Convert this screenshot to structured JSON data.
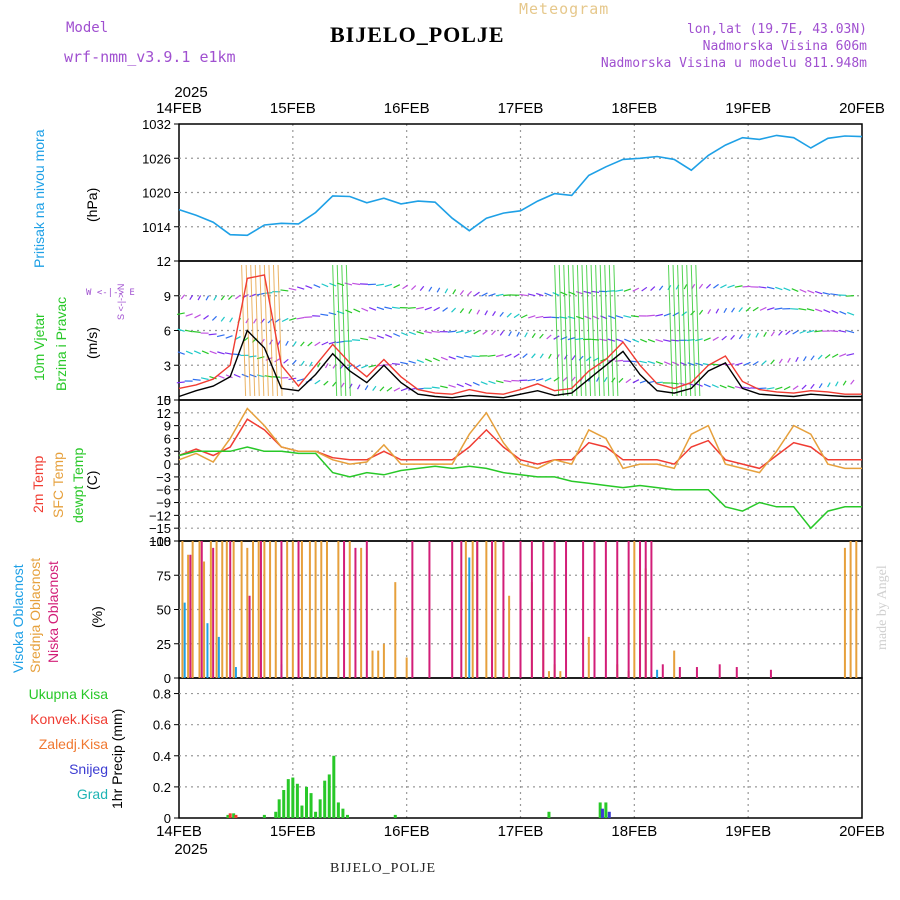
{
  "header": {
    "title": "BIJELO_POLJE",
    "meteogram": "Meteogram",
    "model_label": "Model",
    "model_name": "wrf-nmm_v3.9.1 e1km",
    "lonlat": "lon,lat (19.7E, 43.03N)",
    "elevation": "Nadmorska Visina 606m",
    "model_elevation": "Nadmorska Visina u modelu 811.948m",
    "bottom_station": "BIJELO_POLJE",
    "watermark": "made by Angel"
  },
  "axis": {
    "year": "2025",
    "days": [
      "14FEB",
      "15FEB",
      "16FEB",
      "17FEB",
      "18FEB",
      "19FEB",
      "20FEB"
    ],
    "colors": {
      "frame": "#000000",
      "grid": "#999999",
      "pressure": "#1ea0e6",
      "temp2m": "#f03c32",
      "sfc": "#e6a03c",
      "dewpt": "#28c828",
      "high": "#1ea0e6",
      "mid": "#e6a03c",
      "low": "#d21e78",
      "total": "#28c828",
      "convective": "#f03c32",
      "freezing": "#f07830",
      "snow": "#3c3cd2",
      "hail": "#1eb4b4",
      "wind": "#000000",
      "wind_bar": "#f03c32"
    }
  },
  "panels": {
    "pressure": {
      "label": "Pritisak na nivou mora",
      "unit": "(hPa)"
    },
    "wind": {
      "label1": "10m Vjetar",
      "label2": "Brzina i Pravac",
      "unit": "(m/s)",
      "compass": "W <-|-> E",
      "compass_ns": "S <-|-> N"
    },
    "temp": {
      "label1": "2m Temp",
      "label2": "SFC Temp",
      "label3": "dewpt Temp",
      "unit": "(C)"
    },
    "cloud": {
      "label1": "Visoka Oblacnost",
      "label2": "Srednja Oblacnost",
      "label3": "Niska Oblacnost",
      "unit": "(%)"
    },
    "precip": {
      "legend": [
        "Ukupna Kisa",
        "Konvek.Kisa",
        "Zaledj.Kisa",
        "Snijeg",
        "Grad"
      ],
      "unit": "1hr Precip (mm)"
    }
  },
  "chart_data": [
    {
      "type": "line",
      "title": "",
      "ylabel": "Pritisak na nivou mora (hPa)",
      "ylim": [
        1008,
        1032
      ],
      "yticks": [
        1014,
        1020,
        1026,
        1032
      ],
      "x": [
        0,
        0.15,
        0.3,
        0.45,
        0.6,
        0.75,
        0.9,
        1.05,
        1.2,
        1.35,
        1.5,
        1.65,
        1.8,
        1.95,
        2.1,
        2.25,
        2.4,
        2.55,
        2.7,
        2.85,
        3.0,
        3.15,
        3.3,
        3.45,
        3.6,
        3.75,
        3.9,
        4.05,
        4.2,
        4.35,
        4.5,
        4.65,
        4.8,
        4.95,
        5.1,
        5.25,
        5.4,
        5.55,
        5.7,
        5.85,
        6.0
      ],
      "series": [
        {
          "values": [
            1017.0,
            1016.0,
            1014.8,
            1012.6,
            1012.5,
            1014.3,
            1014.6,
            1014.5,
            1016.5,
            1019.4,
            1019.3,
            1018.2,
            1019.0,
            1018.0,
            1018.5,
            1018.3,
            1015.5,
            1013.3,
            1015.5,
            1016.4,
            1016.8,
            1018.5,
            1019.8,
            1019.5,
            1023.0,
            1024.5,
            1025.8,
            1026.0,
            1026.3,
            1025.8,
            1023.9,
            1026.5,
            1028.3,
            1029.6,
            1029.3,
            1030.0,
            1029.6,
            1027.8,
            1029.5,
            1029.9,
            1029.8
          ]
        }
      ]
    },
    {
      "type": "line",
      "title": "",
      "ylabel": "10m Vjetar Brzina i Pravac (m/s)",
      "ylim": [
        0,
        12
      ],
      "yticks": [
        0,
        3,
        6,
        9,
        12
      ],
      "x": [
        0,
        0.15,
        0.3,
        0.45,
        0.6,
        0.75,
        0.9,
        1.05,
        1.2,
        1.35,
        1.5,
        1.65,
        1.8,
        1.95,
        2.1,
        2.25,
        2.4,
        2.55,
        2.7,
        2.85,
        3.0,
        3.15,
        3.3,
        3.45,
        3.6,
        3.75,
        3.9,
        4.05,
        4.2,
        4.35,
        4.5,
        4.65,
        4.8,
        4.95,
        5.1,
        5.25,
        5.4,
        5.55,
        5.7,
        5.85,
        6.0
      ],
      "series": [
        {
          "values": [
            0.3,
            0.8,
            1.2,
            2.0,
            6.0,
            4.5,
            1.0,
            0.8,
            2.2,
            4.0,
            2.5,
            1.5,
            3.0,
            1.5,
            0.5,
            0.3,
            0.2,
            0.4,
            0.3,
            0.2,
            0.5,
            0.8,
            0.4,
            0.6,
            1.8,
            3.0,
            4.2,
            2.2,
            0.8,
            0.6,
            1.0,
            2.5,
            3.2,
            1.0,
            0.5,
            0.4,
            0.3,
            0.5,
            0.4,
            0.3,
            0.3
          ]
        },
        {
          "values": [
            1.0,
            1.3,
            1.8,
            3.0,
            10.5,
            10.8,
            3.0,
            1.2,
            3.0,
            4.8,
            3.2,
            2.0,
            3.5,
            2.0,
            0.9,
            0.6,
            0.5,
            0.9,
            0.6,
            0.5,
            0.9,
            1.4,
            0.8,
            1.0,
            2.5,
            3.5,
            5.0,
            3.0,
            1.4,
            1.0,
            1.5,
            3.0,
            3.8,
            1.6,
            0.9,
            0.7,
            0.6,
            0.8,
            0.7,
            0.5,
            0.5
          ]
        }
      ]
    },
    {
      "type": "line",
      "title": "",
      "ylabel": "Temp (C)",
      "ylim": [
        -18,
        15
      ],
      "yticks": [
        -18,
        -15,
        -12,
        -9,
        -6,
        -3,
        0,
        3,
        6,
        9,
        12,
        15
      ],
      "x": [
        0,
        0.15,
        0.3,
        0.45,
        0.6,
        0.75,
        0.9,
        1.05,
        1.2,
        1.35,
        1.5,
        1.65,
        1.8,
        1.95,
        2.1,
        2.25,
        2.4,
        2.55,
        2.7,
        2.85,
        3.0,
        3.15,
        3.3,
        3.45,
        3.6,
        3.75,
        3.9,
        4.05,
        4.2,
        4.35,
        4.5,
        4.65,
        4.8,
        4.95,
        5.1,
        5.25,
        5.4,
        5.55,
        5.7,
        5.85,
        6.0
      ],
      "series": [
        {
          "name": "2m Temp",
          "values": [
            2,
            3.5,
            2,
            4,
            10.5,
            8,
            4,
            3,
            3,
            1.5,
            1,
            1,
            3,
            1,
            1,
            1,
            1,
            4,
            8,
            4,
            1,
            0,
            1,
            1,
            5,
            4,
            1,
            1,
            1,
            0,
            4,
            5.5,
            1,
            0,
            -1,
            2,
            5,
            4,
            1,
            1,
            1
          ]
        },
        {
          "name": "SFC Temp",
          "values": [
            1,
            2.5,
            0.5,
            6,
            13,
            9,
            4,
            3,
            3,
            1,
            0,
            0.5,
            4.5,
            0,
            0,
            0,
            0,
            7,
            12,
            5,
            0,
            -1,
            1,
            0,
            8,
            6,
            -1,
            0,
            0,
            -1,
            7,
            9,
            0,
            -1,
            -2,
            3,
            9,
            7,
            0,
            -1,
            -1
          ]
        },
        {
          "name": "dewpt Temp",
          "values": [
            2,
            3,
            3,
            3,
            4,
            3,
            3,
            2.5,
            2.5,
            -2,
            -3,
            -2,
            -2.5,
            -1.5,
            -1,
            -0.5,
            -1,
            -0.5,
            -1,
            -2,
            -2.5,
            -3,
            -3,
            -4,
            -4.5,
            -5,
            -5.5,
            -5,
            -5.5,
            -6,
            -6,
            -6,
            -10,
            -11,
            -9,
            -10,
            -10,
            -15,
            -11,
            -10,
            -10
          ]
        }
      ]
    },
    {
      "type": "bar",
      "title": "",
      "ylabel": "Oblacnost (%)",
      "ylim": [
        0,
        100
      ],
      "yticks": [
        0,
        25,
        50,
        75,
        100
      ],
      "series": [
        {
          "name": "Visoka Oblacnost",
          "points": [
            [
              0.05,
              55
            ],
            [
              0.25,
              40
            ],
            [
              0.35,
              30
            ],
            [
              0.5,
              8
            ],
            [
              0.9,
              10
            ],
            [
              2.55,
              88
            ],
            [
              4.2,
              6
            ]
          ]
        },
        {
          "name": "Srednja Oblacnost",
          "points": [
            [
              0.03,
              100
            ],
            [
              0.08,
              90
            ],
            [
              0.12,
              100
            ],
            [
              0.18,
              100
            ],
            [
              0.22,
              85
            ],
            [
              0.28,
              100
            ],
            [
              0.33,
              100
            ],
            [
              0.38,
              100
            ],
            [
              0.42,
              100
            ],
            [
              0.48,
              100
            ],
            [
              0.55,
              100
            ],
            [
              0.6,
              95
            ],
            [
              0.65,
              100
            ],
            [
              0.7,
              100
            ],
            [
              0.75,
              100
            ],
            [
              0.8,
              100
            ],
            [
              0.85,
              100
            ],
            [
              0.95,
              100
            ],
            [
              1.0,
              100
            ],
            [
              1.08,
              100
            ],
            [
              1.15,
              100
            ],
            [
              1.2,
              100
            ],
            [
              1.25,
              100
            ],
            [
              1.3,
              100
            ],
            [
              1.4,
              100
            ],
            [
              1.5,
              100
            ],
            [
              1.6,
              95
            ],
            [
              1.7,
              20
            ],
            [
              1.75,
              20
            ],
            [
              1.8,
              25
            ],
            [
              1.9,
              70
            ],
            [
              2.0,
              15
            ],
            [
              2.52,
              100
            ],
            [
              2.58,
              100
            ],
            [
              2.62,
              100
            ],
            [
              2.7,
              100
            ],
            [
              2.78,
              100
            ],
            [
              2.9,
              60
            ],
            [
              3.0,
              60
            ],
            [
              3.1,
              70
            ],
            [
              3.2,
              50
            ],
            [
              3.25,
              5
            ],
            [
              3.3,
              10
            ],
            [
              3.35,
              5
            ],
            [
              3.6,
              30
            ],
            [
              3.85,
              10
            ],
            [
              3.95,
              5
            ],
            [
              4.0,
              100
            ],
            [
              4.05,
              95
            ],
            [
              4.1,
              80
            ],
            [
              4.35,
              20
            ],
            [
              5.85,
              95
            ],
            [
              5.9,
              100
            ],
            [
              5.95,
              100
            ]
          ]
        },
        {
          "name": "Niska Oblacnost",
          "points": [
            [
              0.1,
              90
            ],
            [
              0.2,
              100
            ],
            [
              0.3,
              95
            ],
            [
              0.45,
              100
            ],
            [
              0.62,
              60
            ],
            [
              0.72,
              100
            ],
            [
              0.9,
              100
            ],
            [
              1.05,
              100
            ],
            [
              1.45,
              100
            ],
            [
              1.55,
              95
            ],
            [
              1.65,
              100
            ],
            [
              2.05,
              100
            ],
            [
              2.2,
              100
            ],
            [
              2.4,
              100
            ],
            [
              2.48,
              100
            ],
            [
              2.62,
              100
            ],
            [
              2.75,
              100
            ],
            [
              2.85,
              100
            ],
            [
              3.0,
              100
            ],
            [
              3.1,
              100
            ],
            [
              3.2,
              100
            ],
            [
              3.3,
              100
            ],
            [
              3.4,
              100
            ],
            [
              3.55,
              100
            ],
            [
              3.65,
              100
            ],
            [
              3.75,
              100
            ],
            [
              3.85,
              100
            ],
            [
              3.95,
              100
            ],
            [
              4.05,
              100
            ],
            [
              4.1,
              100
            ],
            [
              4.15,
              100
            ],
            [
              4.25,
              10
            ],
            [
              4.4,
              8
            ],
            [
              4.55,
              8
            ],
            [
              4.75,
              10
            ],
            [
              4.9,
              8
            ],
            [
              5.2,
              6
            ]
          ]
        }
      ]
    },
    {
      "type": "bar",
      "title": "",
      "ylabel": "1hr Precip (mm)",
      "ylim": [
        0,
        0.9
      ],
      "yticks": [
        0,
        0.2,
        0.4,
        0.6,
        0.8
      ],
      "series": [
        {
          "name": "Ukupna Kisa",
          "points": [
            [
              0.43,
              0.02
            ],
            [
              0.48,
              0.03
            ],
            [
              0.75,
              0.02
            ],
            [
              0.85,
              0.04
            ],
            [
              0.88,
              0.12
            ],
            [
              0.92,
              0.18
            ],
            [
              0.96,
              0.25
            ],
            [
              1.0,
              0.26
            ],
            [
              1.04,
              0.22
            ],
            [
              1.08,
              0.08
            ],
            [
              1.12,
              0.2
            ],
            [
              1.16,
              0.16
            ],
            [
              1.2,
              0.04
            ],
            [
              1.24,
              0.12
            ],
            [
              1.28,
              0.24
            ],
            [
              1.32,
              0.28
            ],
            [
              1.36,
              0.4
            ],
            [
              1.4,
              0.1
            ],
            [
              1.44,
              0.06
            ],
            [
              1.48,
              0.02
            ],
            [
              1.9,
              0.02
            ],
            [
              3.25,
              0.04
            ],
            [
              3.7,
              0.1
            ],
            [
              3.75,
              0.1
            ]
          ]
        },
        {
          "name": "Konvek.Kisa",
          "points": [
            [
              0.45,
              0.03
            ],
            [
              0.5,
              0.02
            ]
          ]
        },
        {
          "name": "Snijeg",
          "points": [
            [
              3.72,
              0.06
            ],
            [
              3.78,
              0.04
            ]
          ]
        }
      ]
    }
  ]
}
